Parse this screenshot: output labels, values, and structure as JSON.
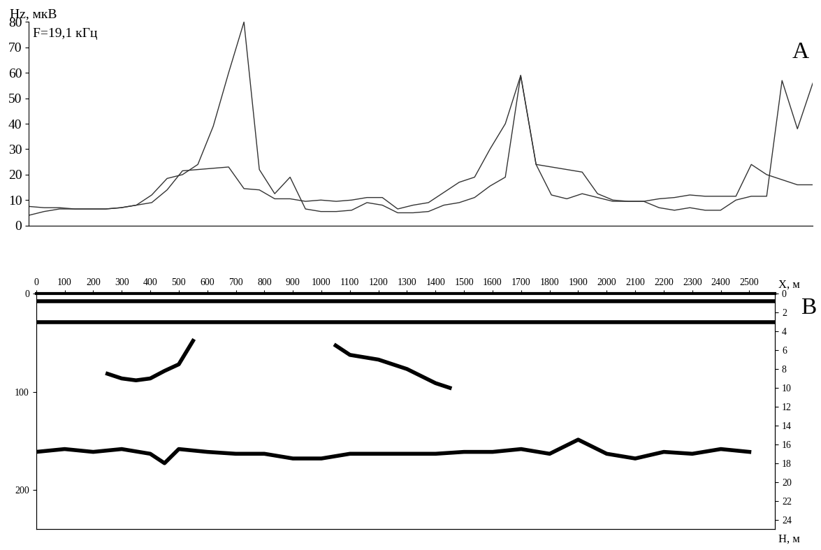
{
  "chart_data": [
    {
      "type": "line",
      "y_label": "Hz, мкВ",
      "annotation": "F=19,1 кГц",
      "panel_label": "A",
      "tick_labels": "y",
      "xlim": [
        0,
        2550
      ],
      "ylim": [
        0,
        80
      ],
      "yticks": [
        0,
        10,
        20,
        30,
        40,
        50,
        60,
        70,
        80
      ],
      "x": [
        0,
        50,
        100,
        150,
        200,
        250,
        300,
        350,
        400,
        450,
        500,
        550,
        600,
        650,
        700,
        750,
        800,
        850,
        900,
        950,
        1000,
        1050,
        1100,
        1150,
        1200,
        1250,
        1300,
        1350,
        1400,
        1450,
        1500,
        1550,
        1600,
        1650,
        1700,
        1750,
        1800,
        1850,
        1900,
        1950,
        2000,
        2050,
        2100,
        2150,
        2200,
        2250,
        2300,
        2350,
        2400,
        2450,
        2500,
        2550
      ],
      "series": [
        {
          "color": "#333333",
          "values": [
            4,
            5.5,
            6.5,
            6.5,
            6.5,
            6.5,
            7,
            8,
            12,
            18.5,
            20,
            24,
            39,
            60,
            80,
            22,
            12.5,
            19,
            6.5,
            5.5,
            5.5,
            6,
            9,
            8,
            5,
            5,
            5.5,
            8,
            9,
            11,
            15.5,
            19,
            59,
            24,
            23,
            22,
            21,
            12.5,
            10,
            9.5,
            9.5,
            7,
            6,
            7,
            6,
            6,
            10,
            11.5,
            11.5,
            57,
            38,
            56
          ]
        },
        {
          "color": "#333333",
          "values": [
            7.5,
            7,
            7,
            6.5,
            6.5,
            6.5,
            7,
            8,
            9,
            14,
            21.5,
            22,
            22.5,
            23,
            14.5,
            14,
            10.5,
            10.5,
            9.5,
            10,
            9.5,
            10,
            11,
            11,
            6.5,
            8,
            9,
            13,
            17,
            19,
            30,
            40,
            59,
            24,
            12,
            10.5,
            12.5,
            11,
            9.5,
            9.5,
            9.5,
            10.5,
            11,
            12,
            11.5,
            11.5,
            11.5,
            24,
            20,
            18,
            16,
            16
          ]
        }
      ]
    },
    {
      "type": "line",
      "x_label": "X, м",
      "y2_label": "Н, м",
      "panel_label": "B",
      "xlim": [
        0,
        2590
      ],
      "xticks": [
        0,
        100,
        200,
        300,
        400,
        500,
        600,
        700,
        800,
        900,
        1000,
        1100,
        1200,
        1300,
        1400,
        1500,
        1600,
        1700,
        1800,
        1900,
        2000,
        2100,
        2200,
        2300,
        2400,
        2500
      ],
      "ylim": [
        240,
        0
      ],
      "yticks": [
        0,
        100,
        200
      ],
      "y2lim": [
        25,
        0
      ],
      "y2ticks": [
        0,
        2,
        4,
        6,
        8,
        10,
        12,
        14,
        16,
        18,
        20,
        22,
        24
      ],
      "series": [
        {
          "axis": "y2",
          "color": "#000000",
          "x": [
            0,
            2590
          ],
          "values": [
            0.8,
            0.8
          ]
        },
        {
          "axis": "y2",
          "color": "#000000",
          "x": [
            0,
            2590
          ],
          "values": [
            3,
            3
          ]
        },
        {
          "axis": "y2",
          "color": "#000000",
          "x": [
            250,
            300,
            350,
            400,
            450,
            500,
            550
          ],
          "values": [
            8.5,
            9,
            9.2,
            9,
            8.2,
            7.5,
            5
          ]
        },
        {
          "axis": "y2",
          "color": "#000000",
          "x": [
            1050,
            1100,
            1200,
            1300,
            1400,
            1450
          ],
          "values": [
            5.5,
            6.5,
            7,
            8,
            9.5,
            10
          ]
        },
        {
          "axis": "y2",
          "color": "#000000",
          "x": [
            0,
            100,
            200,
            300,
            400,
            450,
            500,
            600,
            700,
            800,
            900,
            1000,
            1100,
            1200,
            1300,
            1400,
            1500,
            1600,
            1700,
            1800,
            1900,
            2000,
            2100,
            2200,
            2300,
            2400,
            2500
          ],
          "values": [
            16.8,
            16.5,
            16.8,
            16.5,
            17,
            18,
            16.5,
            16.8,
            17,
            17,
            17.5,
            17.5,
            17,
            17,
            17,
            17,
            16.8,
            16.8,
            16.5,
            17,
            15.5,
            17,
            17.5,
            16.8,
            17,
            16.5,
            16.8
          ]
        }
      ]
    }
  ]
}
